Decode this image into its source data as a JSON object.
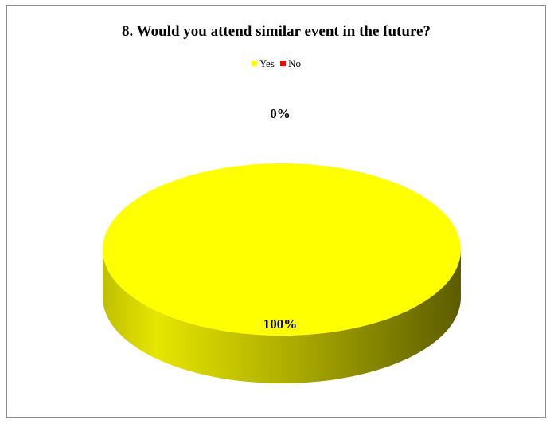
{
  "chart_data": {
    "type": "pie",
    "title": "8. Would you attend similar event in the future?",
    "series": [
      {
        "name": "Yes",
        "value": 100,
        "label": "100%",
        "color": "#ffff00"
      },
      {
        "name": "No",
        "value": 0,
        "label": "0%",
        "color": "#ff0000"
      }
    ],
    "legend_placement": "top",
    "style": "3d"
  }
}
